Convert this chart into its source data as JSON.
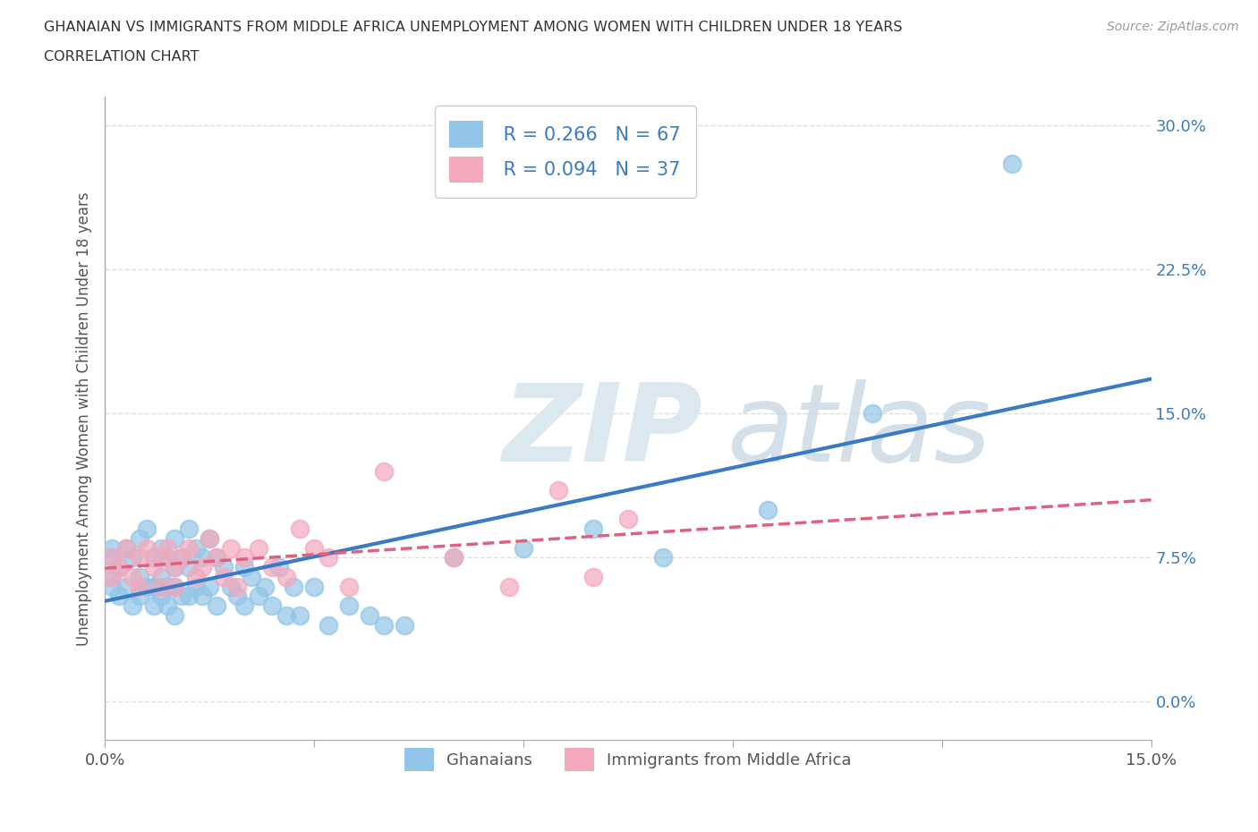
{
  "title_line1": "GHANAIAN VS IMMIGRANTS FROM MIDDLE AFRICA UNEMPLOYMENT AMONG WOMEN WITH CHILDREN UNDER 18 YEARS",
  "title_line2": "CORRELATION CHART",
  "source": "Source: ZipAtlas.com",
  "ylabel": "Unemployment Among Women with Children Under 18 years",
  "xlim": [
    0.0,
    0.15
  ],
  "ylim": [
    -0.02,
    0.315
  ],
  "yticks": [
    0.0,
    0.075,
    0.15,
    0.225,
    0.3
  ],
  "ytick_labels": [
    "0.0%",
    "7.5%",
    "15.0%",
    "22.5%",
    "30.0%"
  ],
  "xticks": [
    0.0,
    0.03,
    0.06,
    0.09,
    0.12,
    0.15
  ],
  "xtick_labels": [
    "0.0%",
    "",
    "",
    "",
    "",
    "15.0%"
  ],
  "ghanaian_color": "#92C5E8",
  "immigrant_color": "#F4A8BC",
  "ghanaian_R": 0.266,
  "ghanaian_N": 67,
  "immigrant_R": 0.094,
  "immigrant_N": 37,
  "trend_ghanaian_color": "#3A7CC4",
  "trend_immigrant_color": "#E06080",
  "trend_immigrant_dash": true,
  "background_color": "#FFFFFF",
  "grid_color": "#D8D8D8",
  "ghanaian_scatter_x": [
    0.001,
    0.001,
    0.001,
    0.001,
    0.002,
    0.002,
    0.003,
    0.003,
    0.004,
    0.004,
    0.005,
    0.005,
    0.005,
    0.006,
    0.006,
    0.007,
    0.007,
    0.007,
    0.008,
    0.008,
    0.008,
    0.009,
    0.009,
    0.009,
    0.01,
    0.01,
    0.01,
    0.01,
    0.011,
    0.011,
    0.012,
    0.012,
    0.012,
    0.013,
    0.013,
    0.014,
    0.014,
    0.015,
    0.015,
    0.016,
    0.016,
    0.017,
    0.018,
    0.019,
    0.02,
    0.02,
    0.021,
    0.022,
    0.023,
    0.024,
    0.025,
    0.026,
    0.027,
    0.028,
    0.03,
    0.032,
    0.035,
    0.038,
    0.04,
    0.043,
    0.05,
    0.06,
    0.07,
    0.08,
    0.095,
    0.11,
    0.13
  ],
  "ghanaian_scatter_y": [
    0.075,
    0.08,
    0.065,
    0.06,
    0.07,
    0.055,
    0.08,
    0.06,
    0.075,
    0.05,
    0.085,
    0.065,
    0.055,
    0.09,
    0.06,
    0.075,
    0.06,
    0.05,
    0.08,
    0.065,
    0.055,
    0.075,
    0.06,
    0.05,
    0.085,
    0.07,
    0.06,
    0.045,
    0.075,
    0.055,
    0.09,
    0.07,
    0.055,
    0.08,
    0.06,
    0.075,
    0.055,
    0.085,
    0.06,
    0.075,
    0.05,
    0.07,
    0.06,
    0.055,
    0.07,
    0.05,
    0.065,
    0.055,
    0.06,
    0.05,
    0.07,
    0.045,
    0.06,
    0.045,
    0.06,
    0.04,
    0.05,
    0.045,
    0.04,
    0.04,
    0.075,
    0.08,
    0.09,
    0.075,
    0.1,
    0.15,
    0.28
  ],
  "immigrant_scatter_x": [
    0.001,
    0.001,
    0.002,
    0.003,
    0.004,
    0.005,
    0.005,
    0.006,
    0.007,
    0.008,
    0.008,
    0.009,
    0.01,
    0.01,
    0.011,
    0.012,
    0.013,
    0.014,
    0.015,
    0.016,
    0.017,
    0.018,
    0.019,
    0.02,
    0.022,
    0.024,
    0.026,
    0.028,
    0.03,
    0.032,
    0.035,
    0.04,
    0.05,
    0.058,
    0.065,
    0.07,
    0.075
  ],
  "immigrant_scatter_y": [
    0.075,
    0.065,
    0.07,
    0.08,
    0.065,
    0.075,
    0.06,
    0.08,
    0.07,
    0.075,
    0.06,
    0.08,
    0.07,
    0.06,
    0.075,
    0.08,
    0.065,
    0.07,
    0.085,
    0.075,
    0.065,
    0.08,
    0.06,
    0.075,
    0.08,
    0.07,
    0.065,
    0.09,
    0.08,
    0.075,
    0.06,
    0.12,
    0.075,
    0.06,
    0.11,
    0.065,
    0.095
  ]
}
